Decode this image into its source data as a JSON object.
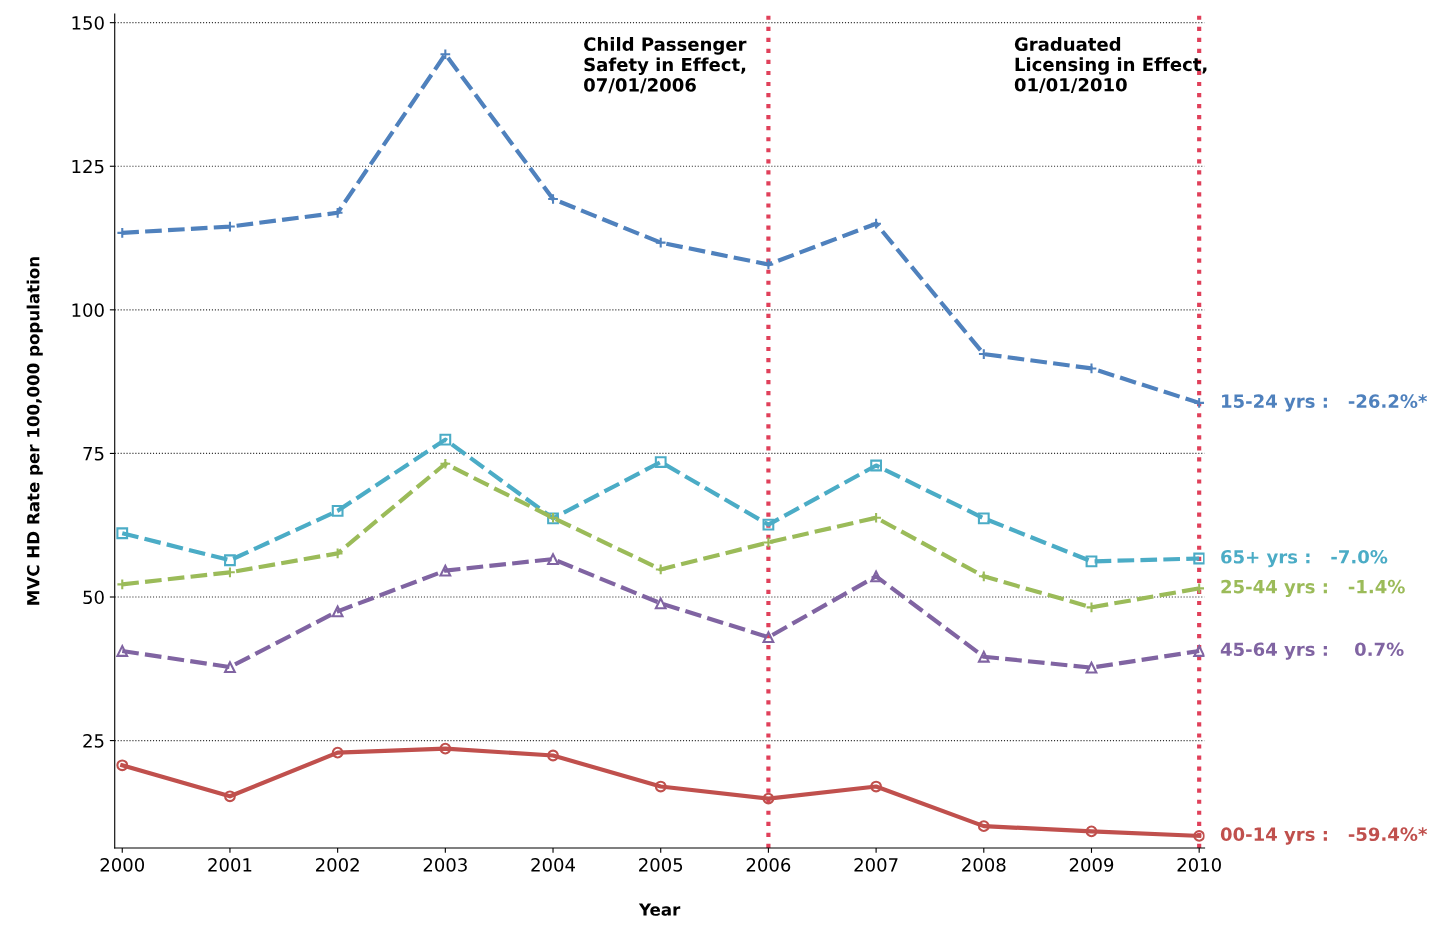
{
  "chart_data": {
    "type": "line",
    "xlabel": "Year",
    "ylabel": "MVC HD Rate per 100,000 population",
    "x": [
      2000,
      2001,
      2002,
      2003,
      2004,
      2005,
      2006,
      2007,
      2008,
      2009,
      2010
    ],
    "xlim": [
      1999.93,
      2010.05
    ],
    "xticks": [
      2000,
      2001,
      2002,
      2003,
      2004,
      2005,
      2006,
      2007,
      2008,
      2009,
      2010
    ],
    "ylim": [
      6.3,
      151.5
    ],
    "yticks": [
      25,
      50,
      75,
      100,
      125,
      150
    ],
    "grid": "y",
    "legend": false,
    "series": [
      {
        "name": "15-24 yrs :   -26.2%*",
        "color": "#4f81bd",
        "marker": "cross",
        "line_style": "dashed",
        "values": [
          113.4,
          114.5,
          116.9,
          144.5,
          119.3,
          111.7,
          107.9,
          115.0,
          92.3,
          89.8,
          83.8
        ]
      },
      {
        "name": "65+ yrs :   -7.0%",
        "color": "#4bacc6",
        "marker": "square",
        "line_style": "dashed",
        "values": [
          61.1,
          56.4,
          65.0,
          77.4,
          63.7,
          73.5,
          62.6,
          72.9,
          63.7,
          56.2,
          56.7
        ]
      },
      {
        "name": "25-44 yrs :   -1.4%",
        "color": "#9bbb59",
        "marker": "cross",
        "line_style": "dashed",
        "values": [
          52.2,
          54.3,
          57.6,
          73.2,
          63.8,
          54.8,
          59.5,
          63.8,
          53.6,
          48.2,
          51.5
        ]
      },
      {
        "name": "45-64 yrs :    0.7%",
        "color": "#8064a2",
        "marker": "triangle",
        "line_style": "dashed",
        "values": [
          40.6,
          37.8,
          47.5,
          54.6,
          56.6,
          48.9,
          43.0,
          53.6,
          39.6,
          37.7,
          40.6
        ]
      },
      {
        "name": "00-14 yrs :   -59.4%*",
        "color": "#c0504d",
        "marker": "circle",
        "line_style": "solid",
        "values": [
          20.7,
          15.3,
          22.9,
          23.6,
          22.4,
          17.0,
          14.9,
          17.0,
          10.1,
          9.2,
          8.4
        ]
      }
    ],
    "ref_lines": [
      {
        "axis": "x",
        "value": 2006,
        "label": "Child Passenger\nSafety in Effect,\n07/01/2006",
        "color": "#e0405a",
        "line_style": "dotted"
      },
      {
        "axis": "x",
        "value": 2010,
        "label": "Graduated\nLicensing in Effect,\n01/01/2010",
        "color": "#e0405a",
        "line_style": "dotted"
      }
    ]
  }
}
